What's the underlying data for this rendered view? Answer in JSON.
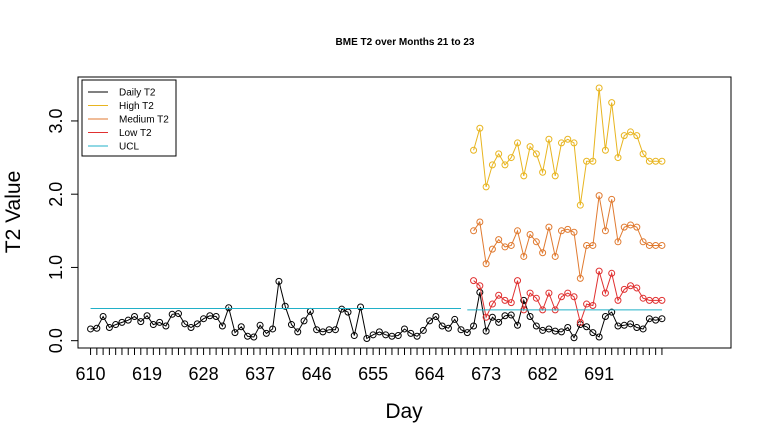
{
  "chart_data": {
    "type": "line",
    "title": "BME T2 over Months 21 to 23",
    "xlabel": "Day",
    "ylabel": "T2 Value",
    "x_tick_labels": [
      "610",
      "619",
      "628",
      "637",
      "646",
      "655",
      "664",
      "673",
      "682",
      "691"
    ],
    "y_tick_labels": [
      "0.0",
      "1.0",
      "2.0",
      "3.0"
    ],
    "xlim": [
      608,
      712
    ],
    "ylim": [
      -0.1,
      3.6
    ],
    "grid": false,
    "legend_position": "top-left",
    "colors": {
      "Daily T2": "#000000",
      "High T2": "#E8B520",
      "Medium T2": "#E07A30",
      "Low T2": "#E03030",
      "UCL": "#20B0C8"
    },
    "series": [
      {
        "name": "Daily T2",
        "x": [
          610,
          611,
          612,
          613,
          614,
          615,
          616,
          617,
          618,
          619,
          620,
          621,
          622,
          623,
          624,
          625,
          626,
          627,
          628,
          629,
          630,
          631,
          632,
          633,
          634,
          635,
          636,
          637,
          638,
          639,
          640,
          641,
          642,
          643,
          644,
          645,
          646,
          647,
          648,
          649,
          650,
          651,
          652,
          653,
          654,
          655,
          656,
          657,
          658,
          659,
          660,
          661,
          662,
          663,
          664,
          665,
          666,
          667,
          668,
          669,
          670,
          671,
          672,
          673,
          674,
          675,
          676,
          677,
          678,
          679,
          680,
          681,
          682,
          683,
          684,
          685,
          686,
          687,
          688,
          689,
          690,
          691,
          692,
          693,
          694,
          695,
          696,
          697,
          698,
          699,
          700,
          701
        ],
        "values": [
          0.16,
          0.17,
          0.33,
          0.18,
          0.22,
          0.25,
          0.28,
          0.33,
          0.26,
          0.34,
          0.22,
          0.25,
          0.2,
          0.36,
          0.37,
          0.23,
          0.18,
          0.23,
          0.3,
          0.34,
          0.33,
          0.2,
          0.45,
          0.11,
          0.19,
          0.06,
          0.05,
          0.21,
          0.1,
          0.16,
          0.81,
          0.47,
          0.22,
          0.12,
          0.27,
          0.4,
          0.15,
          0.12,
          0.15,
          0.15,
          0.43,
          0.39,
          0.07,
          0.46,
          0.03,
          0.08,
          0.12,
          0.08,
          0.06,
          0.07,
          0.16,
          0.1,
          0.06,
          0.14,
          0.27,
          0.33,
          0.2,
          0.17,
          0.29,
          0.15,
          0.11,
          0.2,
          0.66,
          0.13,
          0.32,
          0.25,
          0.34,
          0.35,
          0.21,
          0.55,
          0.33,
          0.2,
          0.14,
          0.16,
          0.13,
          0.12,
          0.18,
          0.04,
          0.22,
          0.19,
          0.11,
          0.05,
          0.33,
          0.39,
          0.2,
          0.21,
          0.23,
          0.18,
          0.16,
          0.3,
          0.28,
          0.3
        ]
      },
      {
        "name": "High T2",
        "x": [
          671,
          672,
          673,
          674,
          675,
          676,
          677,
          678,
          679,
          680,
          681,
          682,
          683,
          684,
          685,
          686,
          687,
          688,
          689,
          690,
          691,
          692,
          693,
          694,
          695,
          696,
          697,
          698,
          699,
          700,
          701
        ],
        "values": [
          2.6,
          2.9,
          2.1,
          2.4,
          2.55,
          2.4,
          2.5,
          2.7,
          2.25,
          2.65,
          2.55,
          2.3,
          2.75,
          2.25,
          2.7,
          2.75,
          2.7,
          1.85,
          2.45,
          2.45,
          3.45,
          2.6,
          3.25,
          2.5,
          2.8,
          2.85,
          2.8,
          2.55,
          2.45,
          2.45,
          2.45
        ]
      },
      {
        "name": "Medium T2",
        "x": [
          671,
          672,
          673,
          674,
          675,
          676,
          677,
          678,
          679,
          680,
          681,
          682,
          683,
          684,
          685,
          686,
          687,
          688,
          689,
          690,
          691,
          692,
          693,
          694,
          695,
          696,
          697,
          698,
          699,
          700,
          701
        ],
        "values": [
          1.5,
          1.62,
          1.05,
          1.25,
          1.38,
          1.28,
          1.3,
          1.5,
          1.15,
          1.45,
          1.35,
          1.2,
          1.55,
          1.15,
          1.5,
          1.52,
          1.48,
          0.85,
          1.3,
          1.3,
          1.98,
          1.5,
          1.93,
          1.35,
          1.55,
          1.58,
          1.55,
          1.35,
          1.3,
          1.3,
          1.3
        ]
      },
      {
        "name": "Low T2",
        "x": [
          671,
          672,
          673,
          674,
          675,
          676,
          677,
          678,
          679,
          680,
          681,
          682,
          683,
          684,
          685,
          686,
          687,
          688,
          689,
          690,
          691,
          692,
          693,
          694,
          695,
          696,
          697,
          698,
          699,
          700,
          701
        ],
        "values": [
          0.82,
          0.75,
          0.32,
          0.5,
          0.62,
          0.55,
          0.52,
          0.82,
          0.42,
          0.65,
          0.58,
          0.42,
          0.65,
          0.42,
          0.6,
          0.65,
          0.6,
          0.25,
          0.5,
          0.48,
          0.95,
          0.65,
          0.92,
          0.55,
          0.7,
          0.75,
          0.72,
          0.58,
          0.55,
          0.55,
          0.55
        ]
      },
      {
        "name": "UCL",
        "x": [
          610,
          669,
          670,
          701
        ],
        "values": [
          0.44,
          0.44,
          0.42,
          0.42
        ],
        "segments": [
          [
            0,
            1
          ],
          [
            2,
            3
          ]
        ]
      }
    ]
  }
}
